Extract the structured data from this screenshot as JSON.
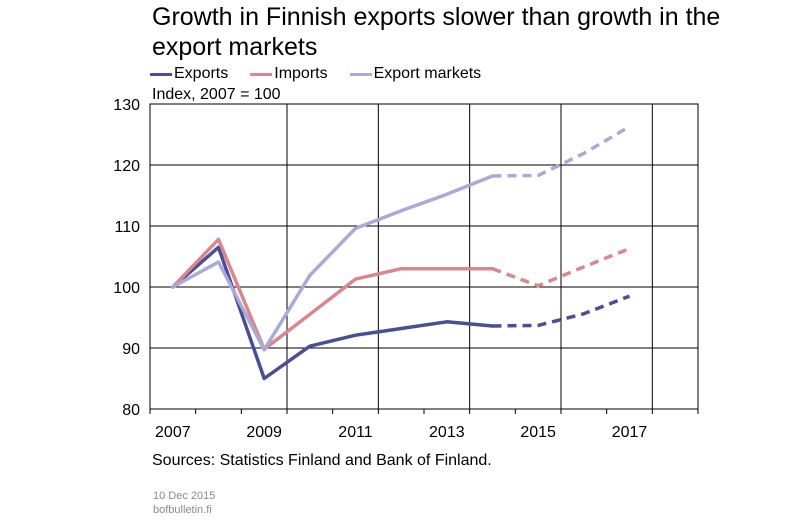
{
  "title": "Growth in Finnish exports slower than growth in the export markets",
  "unit_label": "Index, 2007 = 100",
  "source": "Sources: Statistics Finland and Bank of Finland.",
  "date": "10 Dec 2015",
  "site": "bofbulletin.fi",
  "chart_data": {
    "type": "line",
    "title": "Growth in Finnish exports slower than growth in the export markets",
    "ylabel": "Index, 2007 = 100",
    "xlabel": "",
    "ylim": [
      80,
      130
    ],
    "yticks": [
      80,
      90,
      100,
      110,
      120,
      130
    ],
    "xlim": [
      2006.5,
      2018.5
    ],
    "xticks": [
      2007,
      2009,
      2011,
      2013,
      2015,
      2017
    ],
    "x_gridlines": [
      2009.5,
      2011.5,
      2013.5,
      2015.5,
      2017.5
    ],
    "grid": true,
    "legend_position": "top",
    "forecast_from": 2015,
    "x": [
      2007,
      2008,
      2009,
      2010,
      2011,
      2012,
      2013,
      2014,
      2015,
      2016,
      2017
    ],
    "series": [
      {
        "name": "Exports",
        "color": "#4a4e96",
        "values": [
          100,
          106.5,
          85,
          90.3,
          92.1,
          93.2,
          94.3,
          93.6,
          93.7,
          95.6,
          98.5
        ]
      },
      {
        "name": "Imports",
        "color": "#d9868d",
        "values": [
          100,
          107.8,
          89.8,
          95.5,
          101.3,
          103,
          103,
          103,
          100.2,
          103.3,
          106.3
        ]
      },
      {
        "name": "Export markets",
        "color": "#a9aad6",
        "values": [
          100,
          104.1,
          89.7,
          101.9,
          109.6,
          112.5,
          115.2,
          118.2,
          118.3,
          121.9,
          126.3
        ]
      }
    ]
  }
}
